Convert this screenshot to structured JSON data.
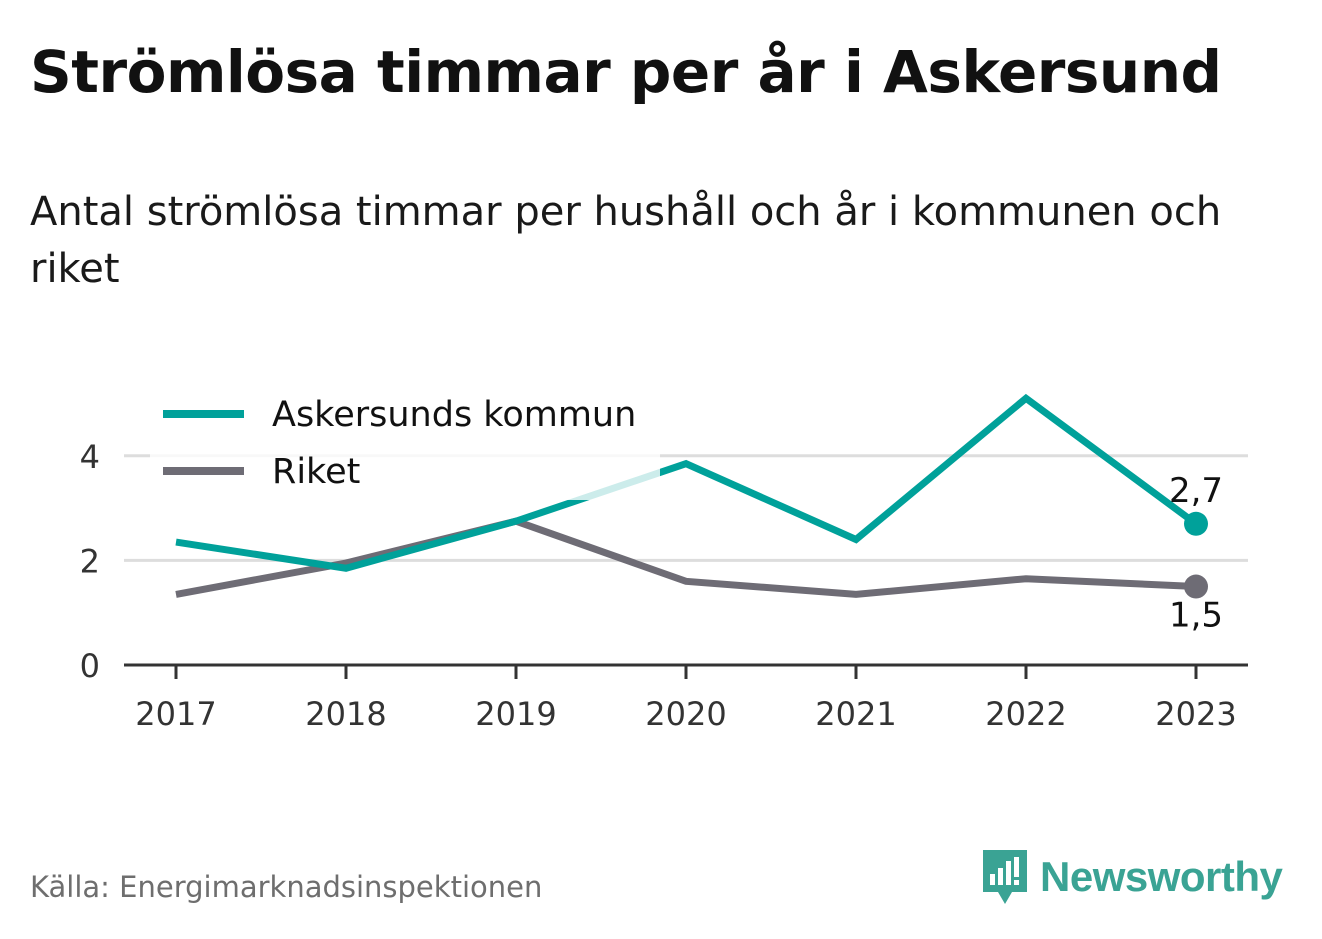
{
  "header": {
    "title": "Strömlösa timmar per år i Askersund",
    "subtitle": "Antal strömlösa timmar per hushåll och år i kommunen och riket"
  },
  "footer": {
    "source": "Källa: Energimarknadsinspektionen",
    "logo_text": "Newsworthy"
  },
  "colors": {
    "askersund": "#00a19a",
    "riket": "#6e6c75",
    "grid": "#dddddd",
    "axis": "#333333",
    "brand": "#3aa394"
  },
  "icons": {
    "logo": "newsworthy-logo-icon"
  },
  "chart_data": {
    "type": "line",
    "x": [
      "2017",
      "2018",
      "2019",
      "2020",
      "2021",
      "2022",
      "2023"
    ],
    "ylim": [
      0,
      5.2
    ],
    "yticks": [
      "0",
      "2",
      "4"
    ],
    "grid": true,
    "legend_position": "top-left",
    "series": [
      {
        "name": "Askersunds kommun",
        "values": [
          2.35,
          1.85,
          2.75,
          3.85,
          2.4,
          5.1,
          2.7
        ],
        "end_label": "2,7"
      },
      {
        "name": "Riket",
        "values": [
          1.35,
          1.95,
          2.75,
          1.6,
          1.35,
          1.65,
          1.5
        ],
        "end_label": "1,5"
      }
    ]
  }
}
